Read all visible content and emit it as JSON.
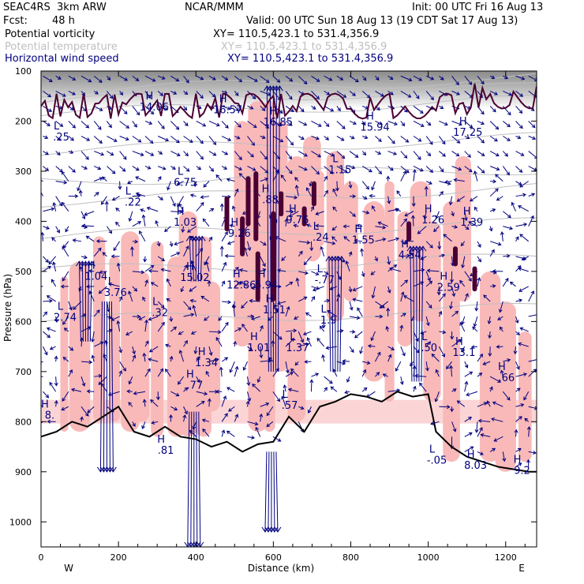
{
  "header": {
    "model": "SEAC4RS  3km ARW",
    "org": "NCAR/MMM",
    "init": "Init: 00 UTC Fri 16 Aug 13",
    "fcst_label": "Fcst:",
    "fcst_value": "48 h",
    "valid": "Valid: 00 UTC Sun 18 Aug 13 (19 CDT Sat 17 Aug 13)"
  },
  "fields": [
    {
      "name": "Potential vorticity",
      "xy": "XY= 110.5,423.1 to 531.4,356.9",
      "color": "#000000"
    },
    {
      "name": "Potential temperature",
      "xy": "XY= 110.5,423.1 to 531.4,356.9",
      "color": "#bfbfbf"
    },
    {
      "name": "Horizontal wind speed",
      "xy": "XY= 110.5,423.1 to 531.4,356.9",
      "color": "#00007f"
    }
  ],
  "colors": {
    "pv_fill": "#f9b9b9",
    "vector": "#00007f",
    "terrain": "#000000",
    "theta_contour": "#bfbfbf",
    "pv_contour": "#4a0033"
  },
  "chart_data": {
    "type": "cross-section",
    "xlabel": "Distance (km)",
    "ylabel": "Pressure (hPa)",
    "xlim": [
      0,
      1280
    ],
    "ylim": [
      1050,
      100
    ],
    "x_ticks": [
      "0",
      "200",
      "400",
      "600",
      "800",
      "1000",
      "1200"
    ],
    "y_ticks": [
      "100",
      "200",
      "300",
      "400",
      "500",
      "600",
      "700",
      "800",
      "900",
      "1000"
    ],
    "x_tick_values": [
      0,
      200,
      400,
      600,
      800,
      1000,
      1200
    ],
    "y_tick_values": [
      100,
      200,
      300,
      400,
      500,
      600,
      700,
      800,
      900,
      1000
    ],
    "direction_labels": {
      "left": "W",
      "right": "E"
    },
    "terrain_profile": {
      "x": [
        0,
        40,
        80,
        120,
        160,
        200,
        240,
        280,
        320,
        360,
        400,
        440,
        480,
        520,
        560,
        600,
        640,
        680,
        720,
        760,
        800,
        840,
        880,
        920,
        960,
        1000,
        1020,
        1060,
        1100,
        1140,
        1180,
        1220,
        1260,
        1280
      ],
      "p": [
        830,
        820,
        800,
        810,
        790,
        770,
        820,
        830,
        810,
        830,
        835,
        850,
        840,
        860,
        845,
        840,
        790,
        820,
        770,
        760,
        745,
        750,
        760,
        740,
        750,
        745,
        820,
        850,
        870,
        880,
        890,
        895,
        900,
        900
      ]
    },
    "max_min_labels": [
      {
        "kind": "H",
        "value": "14.06",
        "x": 280,
        "p": 160
      },
      {
        "kind": "H",
        "value": "16.57",
        "x": 470,
        "p": 165
      },
      {
        "kind": "H",
        "value": "16.85",
        "x": 600,
        "p": 190
      },
      {
        "kind": "H",
        "value": "15.94",
        "x": 850,
        "p": 200
      },
      {
        "kind": "H",
        "value": "17.25",
        "x": 1090,
        "p": 210
      },
      {
        "kind": "L",
        "value": ".25",
        "x": 40,
        "p": 220
      },
      {
        "kind": "L",
        "value": "1.15",
        "x": 760,
        "p": 285
      },
      {
        "kind": "L",
        "value": "6.75",
        "x": 360,
        "p": 310
      },
      {
        "kind": "L",
        "value": ".22",
        "x": 225,
        "p": 350
      },
      {
        "kind": "H",
        "value": ".88",
        "x": 580,
        "p": 345
      },
      {
        "kind": "H",
        "value": "1.03",
        "x": 360,
        "p": 390
      },
      {
        "kind": "H",
        "value": "9.76",
        "x": 650,
        "p": 385
      },
      {
        "kind": "H",
        "value": "1.26",
        "x": 1000,
        "p": 385
      },
      {
        "kind": "H",
        "value": "1.39",
        "x": 1100,
        "p": 390
      },
      {
        "kind": "H",
        "value": "9.26",
        "x": 500,
        "p": 412
      },
      {
        "kind": "L",
        "value": ".24",
        "x": 710,
        "p": 420
      },
      {
        "kind": "H",
        "value": "1.55",
        "x": 820,
        "p": 425
      },
      {
        "kind": "H",
        "value": "4.54",
        "x": 940,
        "p": 455
      },
      {
        "kind": "H",
        "value": "1.04",
        "x": 130,
        "p": 498
      },
      {
        "kind": "H",
        "value": "15.02",
        "x": 385,
        "p": 500
      },
      {
        "kind": "H",
        "value": "12.86",
        "x": 505,
        "p": 515
      },
      {
        "kind": "H",
        "value": "5.94",
        "x": 570,
        "p": 515
      },
      {
        "kind": "L",
        "value": "-.77",
        "x": 720,
        "p": 505
      },
      {
        "kind": "H",
        "value": "2.59",
        "x": 1040,
        "p": 520
      },
      {
        "kind": "L",
        "value": "3.76",
        "x": 180,
        "p": 530
      },
      {
        "kind": "L",
        "value": ".32",
        "x": 295,
        "p": 570
      },
      {
        "kind": "L",
        "value": "2.74",
        "x": 50,
        "p": 580
      },
      {
        "kind": "H",
        "value": "1.51",
        "x": 590,
        "p": 565
      },
      {
        "kind": "L",
        "value": "1.9",
        "x": 730,
        "p": 585
      },
      {
        "kind": "H",
        "value": "1.01",
        "x": 550,
        "p": 640
      },
      {
        "kind": "L",
        "value": "1.37",
        "x": 650,
        "p": 640
      },
      {
        "kind": "L",
        "value": ".50",
        "x": 990,
        "p": 640
      },
      {
        "kind": "H",
        "value": "13.1",
        "x": 1080,
        "p": 650
      },
      {
        "kind": "H",
        "value": "1.34",
        "x": 415,
        "p": 670
      },
      {
        "kind": "H",
        "value": ".66",
        "x": 1190,
        "p": 700
      },
      {
        "kind": "H",
        "value": ".77",
        "x": 385,
        "p": 715
      },
      {
        "kind": "H",
        "value": "8.",
        "x": 10,
        "p": 775
      },
      {
        "kind": "L",
        "value": ".57",
        "x": 630,
        "p": 755
      },
      {
        "kind": "H",
        "value": ".81",
        "x": 310,
        "p": 845
      },
      {
        "kind": "L",
        "value": "-.05",
        "x": 1010,
        "p": 865
      },
      {
        "kind": "H",
        "value": "8.03",
        "x": 1110,
        "p": 875
      },
      {
        "kind": "H",
        "value": "9.2",
        "x": 1230,
        "p": 885
      }
    ]
  }
}
